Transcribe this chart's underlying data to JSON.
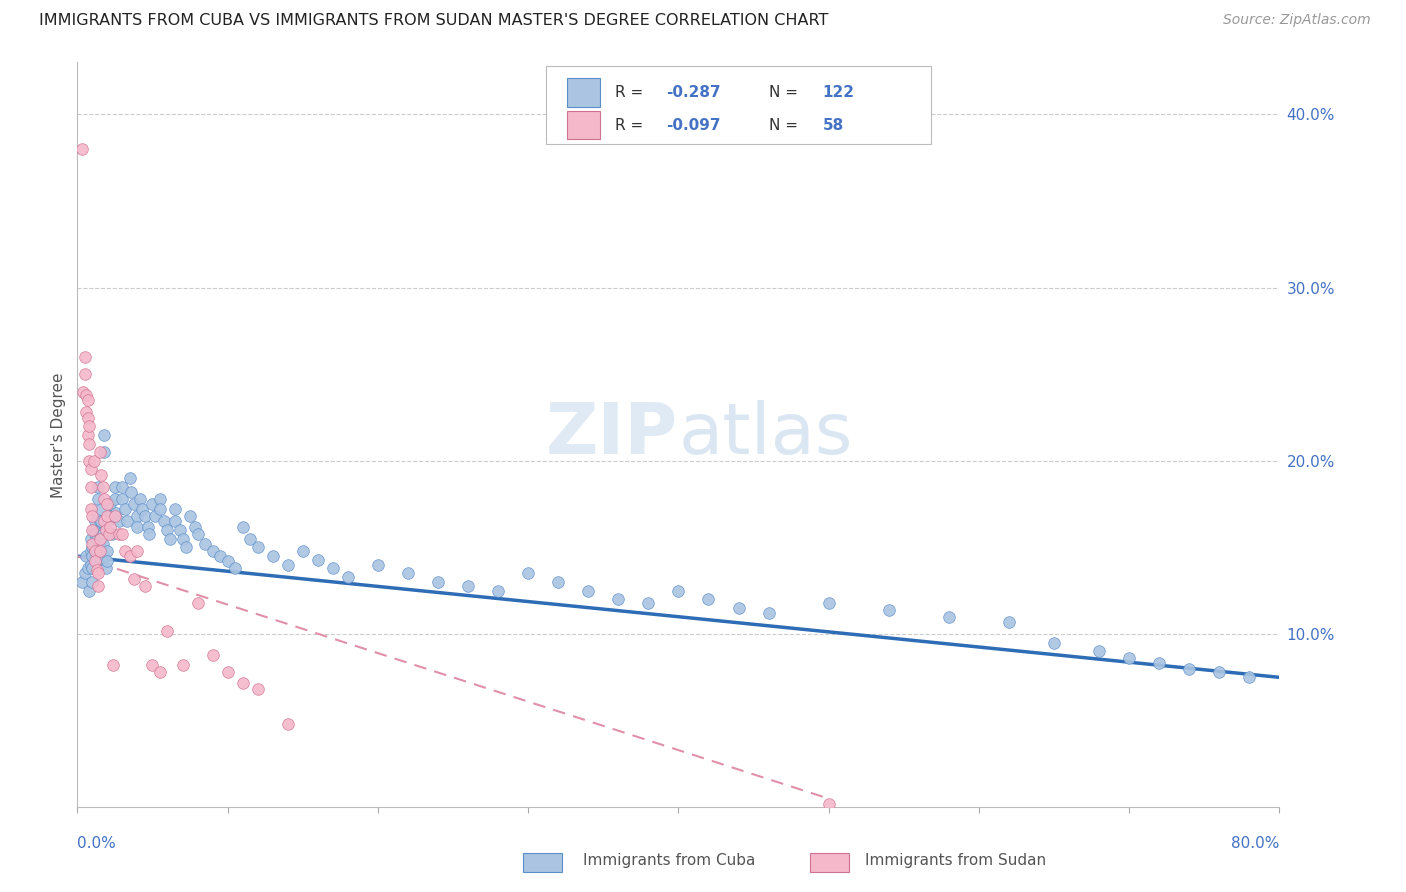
{
  "title": "IMMIGRANTS FROM CUBA VS IMMIGRANTS FROM SUDAN MASTER'S DEGREE CORRELATION CHART",
  "source": "Source: ZipAtlas.com",
  "ylabel": "Master's Degree",
  "right_yticks": [
    "10.0%",
    "20.0%",
    "30.0%",
    "40.0%"
  ],
  "right_ytick_vals": [
    0.1,
    0.2,
    0.3,
    0.4
  ],
  "xlim": [
    0.0,
    0.8
  ],
  "ylim": [
    0.0,
    0.43
  ],
  "cuba_color": "#aac4e2",
  "sudan_color": "#f5b8cb",
  "cuba_edge_color": "#5b8fc9",
  "sudan_edge_color": "#d07090",
  "cuba_line_color": "#2e6db5",
  "sudan_line_color": "#e090a8",
  "watermark": "ZIPatlas",
  "cuba_scatter_x": [
    0.003,
    0.005,
    0.006,
    0.007,
    0.008,
    0.009,
    0.009,
    0.009,
    0.01,
    0.01,
    0.01,
    0.01,
    0.011,
    0.011,
    0.012,
    0.012,
    0.012,
    0.013,
    0.013,
    0.013,
    0.014,
    0.014,
    0.015,
    0.015,
    0.015,
    0.015,
    0.016,
    0.016,
    0.017,
    0.017,
    0.018,
    0.018,
    0.018,
    0.019,
    0.02,
    0.02,
    0.021,
    0.022,
    0.022,
    0.023,
    0.025,
    0.025,
    0.026,
    0.028,
    0.03,
    0.03,
    0.032,
    0.033,
    0.035,
    0.036,
    0.038,
    0.04,
    0.04,
    0.042,
    0.043,
    0.045,
    0.047,
    0.048,
    0.05,
    0.052,
    0.055,
    0.055,
    0.058,
    0.06,
    0.062,
    0.065,
    0.065,
    0.068,
    0.07,
    0.072,
    0.075,
    0.078,
    0.08,
    0.085,
    0.09,
    0.095,
    0.1,
    0.105,
    0.11,
    0.115,
    0.12,
    0.13,
    0.14,
    0.15,
    0.16,
    0.17,
    0.18,
    0.2,
    0.22,
    0.24,
    0.26,
    0.28,
    0.3,
    0.32,
    0.34,
    0.36,
    0.38,
    0.4,
    0.42,
    0.44,
    0.46,
    0.5,
    0.54,
    0.58,
    0.62,
    0.65,
    0.68,
    0.7,
    0.72,
    0.74,
    0.76,
    0.78
  ],
  "cuba_scatter_y": [
    0.13,
    0.135,
    0.145,
    0.138,
    0.125,
    0.155,
    0.148,
    0.14,
    0.15,
    0.145,
    0.138,
    0.13,
    0.16,
    0.152,
    0.165,
    0.158,
    0.148,
    0.155,
    0.148,
    0.142,
    0.185,
    0.178,
    0.165,
    0.158,
    0.15,
    0.144,
    0.172,
    0.165,
    0.158,
    0.152,
    0.215,
    0.205,
    0.145,
    0.138,
    0.148,
    0.142,
    0.165,
    0.175,
    0.168,
    0.158,
    0.185,
    0.178,
    0.17,
    0.165,
    0.185,
    0.178,
    0.172,
    0.165,
    0.19,
    0.182,
    0.175,
    0.168,
    0.162,
    0.178,
    0.172,
    0.168,
    0.162,
    0.158,
    0.175,
    0.168,
    0.178,
    0.172,
    0.165,
    0.16,
    0.155,
    0.172,
    0.165,
    0.16,
    0.155,
    0.15,
    0.168,
    0.162,
    0.158,
    0.152,
    0.148,
    0.145,
    0.142,
    0.138,
    0.162,
    0.155,
    0.15,
    0.145,
    0.14,
    0.148,
    0.143,
    0.138,
    0.133,
    0.14,
    0.135,
    0.13,
    0.128,
    0.125,
    0.135,
    0.13,
    0.125,
    0.12,
    0.118,
    0.125,
    0.12,
    0.115,
    0.112,
    0.118,
    0.114,
    0.11,
    0.107,
    0.095,
    0.09,
    0.086,
    0.083,
    0.08,
    0.078,
    0.075
  ],
  "sudan_scatter_x": [
    0.003,
    0.004,
    0.005,
    0.005,
    0.006,
    0.006,
    0.007,
    0.007,
    0.007,
    0.008,
    0.008,
    0.008,
    0.009,
    0.009,
    0.009,
    0.01,
    0.01,
    0.01,
    0.011,
    0.012,
    0.012,
    0.013,
    0.014,
    0.014,
    0.015,
    0.015,
    0.015,
    0.016,
    0.017,
    0.018,
    0.018,
    0.019,
    0.02,
    0.02,
    0.021,
    0.022,
    0.024,
    0.025,
    0.028,
    0.03,
    0.032,
    0.035,
    0.038,
    0.04,
    0.045,
    0.05,
    0.055,
    0.06,
    0.07,
    0.08,
    0.09,
    0.1,
    0.11,
    0.12,
    0.14,
    0.5
  ],
  "sudan_scatter_y": [
    0.38,
    0.24,
    0.26,
    0.25,
    0.238,
    0.228,
    0.235,
    0.225,
    0.215,
    0.22,
    0.21,
    0.2,
    0.195,
    0.185,
    0.172,
    0.168,
    0.16,
    0.152,
    0.2,
    0.148,
    0.142,
    0.137,
    0.135,
    0.128,
    0.205,
    0.155,
    0.148,
    0.192,
    0.185,
    0.178,
    0.165,
    0.16,
    0.175,
    0.168,
    0.158,
    0.162,
    0.082,
    0.168,
    0.158,
    0.158,
    0.148,
    0.145,
    0.132,
    0.148,
    0.128,
    0.082,
    0.078,
    0.102,
    0.082,
    0.118,
    0.088,
    0.078,
    0.072,
    0.068,
    0.048,
    0.002
  ]
}
